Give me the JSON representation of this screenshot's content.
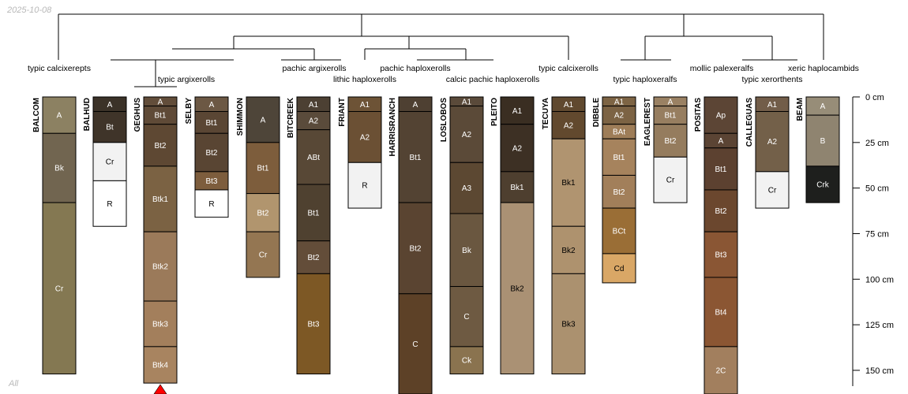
{
  "stamp": {
    "date": "2025-10-08",
    "filter": "All"
  },
  "depth_axis": {
    "unit": "cm",
    "ticks": [
      0,
      25,
      50,
      75,
      100,
      125,
      150
    ]
  },
  "dendrogram_labels": [
    "typic calcixerepts",
    "typic argixerolls",
    "pachic argixerolls",
    "lithic haploxerolls",
    "pachic haploxerolls",
    "calcic pachic haploxerolls",
    "typic calcixerolls",
    "typic haploxeralfs",
    "mollic palexeralfs",
    "typic xerorthents",
    "xeric haplocambids"
  ],
  "profiles": [
    {
      "name": "BALCOM",
      "horizons": [
        {
          "name": "A",
          "top": 0,
          "bottom": 20,
          "color": "#8C8162",
          "text": "#ffffff"
        },
        {
          "name": "Bk",
          "top": 20,
          "bottom": 58,
          "color": "#716550",
          "text": "#ffffff"
        },
        {
          "name": "Cr",
          "top": 58,
          "bottom": 152,
          "color": "#847852",
          "text": "#ffffff"
        }
      ]
    },
    {
      "name": "BALHUD",
      "horizons": [
        {
          "name": "A",
          "top": 0,
          "bottom": 8,
          "color": "#3B3228",
          "text": "#ffffff"
        },
        {
          "name": "Bt",
          "top": 8,
          "bottom": 25,
          "color": "#3F3429",
          "text": "#ffffff"
        },
        {
          "name": "Cr",
          "top": 25,
          "bottom": 46,
          "color": "#F2F2F2",
          "text": "#000000"
        },
        {
          "name": "R",
          "top": 46,
          "bottom": 71,
          "color": "#FFFFFF",
          "text": "#000000"
        }
      ]
    },
    {
      "name": "GEGHUS",
      "horizons": [
        {
          "name": "A",
          "top": 0,
          "bottom": 5,
          "color": "#624D3A",
          "text": "#ffffff"
        },
        {
          "name": "Bt1",
          "top": 5,
          "bottom": 15,
          "color": "#5F4A37",
          "text": "#ffffff"
        },
        {
          "name": "Bt2",
          "top": 15,
          "bottom": 38,
          "color": "#5E4833",
          "text": "#ffffff"
        },
        {
          "name": "Btk1",
          "top": 38,
          "bottom": 74,
          "color": "#7B6243",
          "text": "#ffffff"
        },
        {
          "name": "Btk2",
          "top": 74,
          "bottom": 112,
          "color": "#9B7A5A",
          "text": "#ffffff"
        },
        {
          "name": "Btk3",
          "top": 112,
          "bottom": 137,
          "color": "#A37F5C",
          "text": "#ffffff"
        },
        {
          "name": "Btk4",
          "top": 137,
          "bottom": 157,
          "color": "#A88460",
          "text": "#ffffff"
        }
      ]
    },
    {
      "name": "SELBY",
      "horizons": [
        {
          "name": "A",
          "top": 0,
          "bottom": 8,
          "color": "#6C5844",
          "text": "#ffffff"
        },
        {
          "name": "Bt1",
          "top": 8,
          "bottom": 20,
          "color": "#5A4634",
          "text": "#ffffff"
        },
        {
          "name": "Bt2",
          "top": 20,
          "bottom": 41,
          "color": "#594533",
          "text": "#ffffff"
        },
        {
          "name": "Bt3",
          "top": 41,
          "bottom": 51,
          "color": "#7D5D3D",
          "text": "#ffffff"
        },
        {
          "name": "R",
          "top": 51,
          "bottom": 66,
          "color": "#FFFFFF",
          "text": "#000000"
        }
      ]
    },
    {
      "name": "SHIMMON",
      "horizons": [
        {
          "name": "A",
          "top": 0,
          "bottom": 25,
          "color": "#4E4539",
          "text": "#ffffff"
        },
        {
          "name": "Bt1",
          "top": 25,
          "bottom": 53,
          "color": "#7D5D3C",
          "text": "#ffffff"
        },
        {
          "name": "Bt2",
          "top": 53,
          "bottom": 74,
          "color": "#B1956E",
          "text": "#ffffff"
        },
        {
          "name": "Cr",
          "top": 74,
          "bottom": 99,
          "color": "#947652",
          "text": "#ffffff"
        }
      ]
    },
    {
      "name": "BITCREEK",
      "horizons": [
        {
          "name": "A1",
          "top": 0,
          "bottom": 8,
          "color": "#4C4033",
          "text": "#ffffff"
        },
        {
          "name": "A2",
          "top": 8,
          "bottom": 18,
          "color": "#5A4B3B",
          "text": "#ffffff"
        },
        {
          "name": "ABt",
          "top": 18,
          "bottom": 48,
          "color": "#584836",
          "text": "#ffffff"
        },
        {
          "name": "Bt1",
          "top": 48,
          "bottom": 79,
          "color": "#4F4130",
          "text": "#ffffff"
        },
        {
          "name": "Bt2",
          "top": 79,
          "bottom": 97,
          "color": "#634D39",
          "text": "#ffffff"
        },
        {
          "name": "Bt3",
          "top": 97,
          "bottom": 152,
          "color": "#7D5825",
          "text": "#ffffff"
        }
      ]
    },
    {
      "name": "FRIANT",
      "horizons": [
        {
          "name": "A1",
          "top": 0,
          "bottom": 8,
          "color": "#6D5336",
          "text": "#ffffff"
        },
        {
          "name": "A2",
          "top": 8,
          "bottom": 36,
          "color": "#6B5034",
          "text": "#ffffff"
        },
        {
          "name": "R",
          "top": 36,
          "bottom": 61,
          "color": "#F2F2F2",
          "text": "#000000"
        }
      ]
    },
    {
      "name": "HARRISRANCH",
      "horizons": [
        {
          "name": "A",
          "top": 0,
          "bottom": 8,
          "color": "#4E4032",
          "text": "#ffffff"
        },
        {
          "name": "Bt1",
          "top": 8,
          "bottom": 58,
          "color": "#534333",
          "text": "#ffffff"
        },
        {
          "name": "Bt2",
          "top": 58,
          "bottom": 108,
          "color": "#5A4431",
          "text": "#ffffff"
        },
        {
          "name": "C",
          "top": 108,
          "bottom": 165,
          "color": "#5D4127",
          "text": "#ffffff"
        }
      ]
    },
    {
      "name": "LOSLOBOS",
      "horizons": [
        {
          "name": "A1",
          "top": 0,
          "bottom": 5,
          "color": "#5A4A3A",
          "text": "#ffffff"
        },
        {
          "name": "A2",
          "top": 5,
          "bottom": 36,
          "color": "#5B4A38",
          "text": "#ffffff"
        },
        {
          "name": "A3",
          "top": 36,
          "bottom": 64,
          "color": "#5C4832",
          "text": "#ffffff"
        },
        {
          "name": "Bk",
          "top": 64,
          "bottom": 104,
          "color": "#6A5740",
          "text": "#ffffff"
        },
        {
          "name": "C",
          "top": 104,
          "bottom": 137,
          "color": "#6E5A42",
          "text": "#ffffff"
        },
        {
          "name": "Ck",
          "top": 137,
          "bottom": 152,
          "color": "#8A734F",
          "text": "#ffffff"
        }
      ]
    },
    {
      "name": "PLEITO",
      "horizons": [
        {
          "name": "A1",
          "top": 0,
          "bottom": 15,
          "color": "#3A2E22",
          "text": "#ffffff"
        },
        {
          "name": "A2",
          "top": 15,
          "bottom": 41,
          "color": "#3D3024",
          "text": "#ffffff"
        },
        {
          "name": "Bk1",
          "top": 41,
          "bottom": 58,
          "color": "#4E3F2F",
          "text": "#ffffff"
        },
        {
          "name": "Bk2",
          "top": 58,
          "bottom": 152,
          "color": "#AA9174",
          "text": "#000000"
        }
      ]
    },
    {
      "name": "TECUYA",
      "horizons": [
        {
          "name": "A1",
          "top": 0,
          "bottom": 8,
          "color": "#60492F",
          "text": "#ffffff"
        },
        {
          "name": "A2",
          "top": 8,
          "bottom": 23,
          "color": "#62492E",
          "text": "#ffffff"
        },
        {
          "name": "Bk1",
          "top": 23,
          "bottom": 71,
          "color": "#B09470",
          "text": "#000000"
        },
        {
          "name": "Bk2",
          "top": 71,
          "bottom": 97,
          "color": "#AE926E",
          "text": "#000000"
        },
        {
          "name": "Bk3",
          "top": 97,
          "bottom": 152,
          "color": "#AB916F",
          "text": "#000000"
        }
      ]
    },
    {
      "name": "DIBBLE",
      "horizons": [
        {
          "name": "A1",
          "top": 0,
          "bottom": 5,
          "color": "#7D6444",
          "text": "#ffffff"
        },
        {
          "name": "A2",
          "top": 5,
          "bottom": 15,
          "color": "#7C6344",
          "text": "#ffffff"
        },
        {
          "name": "BAt",
          "top": 15,
          "bottom": 23,
          "color": "#9E7D58",
          "text": "#ffffff"
        },
        {
          "name": "Bt1",
          "top": 23,
          "bottom": 43,
          "color": "#A6835D",
          "text": "#ffffff"
        },
        {
          "name": "Bt2",
          "top": 43,
          "bottom": 61,
          "color": "#A27F5A",
          "text": "#ffffff"
        },
        {
          "name": "BCt",
          "top": 61,
          "bottom": 86,
          "color": "#9A6E36",
          "text": "#ffffff"
        },
        {
          "name": "Cd",
          "top": 86,
          "bottom": 102,
          "color": "#D9A766",
          "text": "#000000"
        }
      ]
    },
    {
      "name": "EAGLEREST",
      "horizons": [
        {
          "name": "A",
          "top": 0,
          "bottom": 5,
          "color": "#9A8163",
          "text": "#ffffff"
        },
        {
          "name": "Bt1",
          "top": 5,
          "bottom": 15,
          "color": "#977E60",
          "text": "#ffffff"
        },
        {
          "name": "Bt2",
          "top": 15,
          "bottom": 33,
          "color": "#957C5E",
          "text": "#ffffff"
        },
        {
          "name": "Cr",
          "top": 33,
          "bottom": 58,
          "color": "#F2F2F2",
          "text": "#000000"
        }
      ]
    },
    {
      "name": "POSITAS",
      "horizons": [
        {
          "name": "Ap",
          "top": 0,
          "bottom": 20,
          "color": "#5C4535",
          "text": "#ffffff"
        },
        {
          "name": "A",
          "top": 20,
          "bottom": 28,
          "color": "#5B4434",
          "text": "#ffffff"
        },
        {
          "name": "Bt1",
          "top": 28,
          "bottom": 51,
          "color": "#5C4130",
          "text": "#ffffff"
        },
        {
          "name": "Bt2",
          "top": 51,
          "bottom": 74,
          "color": "#6B472E",
          "text": "#ffffff"
        },
        {
          "name": "Bt3",
          "top": 74,
          "bottom": 99,
          "color": "#8A5634",
          "text": "#ffffff"
        },
        {
          "name": "Bt4",
          "top": 99,
          "bottom": 137,
          "color": "#8B5633",
          "text": "#ffffff"
        },
        {
          "name": "2C",
          "top": 137,
          "bottom": 165,
          "color": "#A27F5E",
          "text": "#ffffff"
        }
      ]
    },
    {
      "name": "CALLEGUAS",
      "horizons": [
        {
          "name": "A1",
          "top": 0,
          "bottom": 8,
          "color": "#725D49",
          "text": "#ffffff"
        },
        {
          "name": "A2",
          "top": 8,
          "bottom": 41,
          "color": "#736049",
          "text": "#ffffff"
        },
        {
          "name": "Cr",
          "top": 41,
          "bottom": 61,
          "color": "#F2F2F2",
          "text": "#000000"
        }
      ]
    },
    {
      "name": "BEAM",
      "horizons": [
        {
          "name": "A",
          "top": 0,
          "bottom": 10,
          "color": "#978D78",
          "text": "#ffffff"
        },
        {
          "name": "B",
          "top": 10,
          "bottom": 38,
          "color": "#8F8470",
          "text": "#ffffff"
        },
        {
          "name": "Crk",
          "top": 38,
          "bottom": 58,
          "color": "#1E1F1D",
          "text": "#ffffff"
        }
      ]
    }
  ]
}
